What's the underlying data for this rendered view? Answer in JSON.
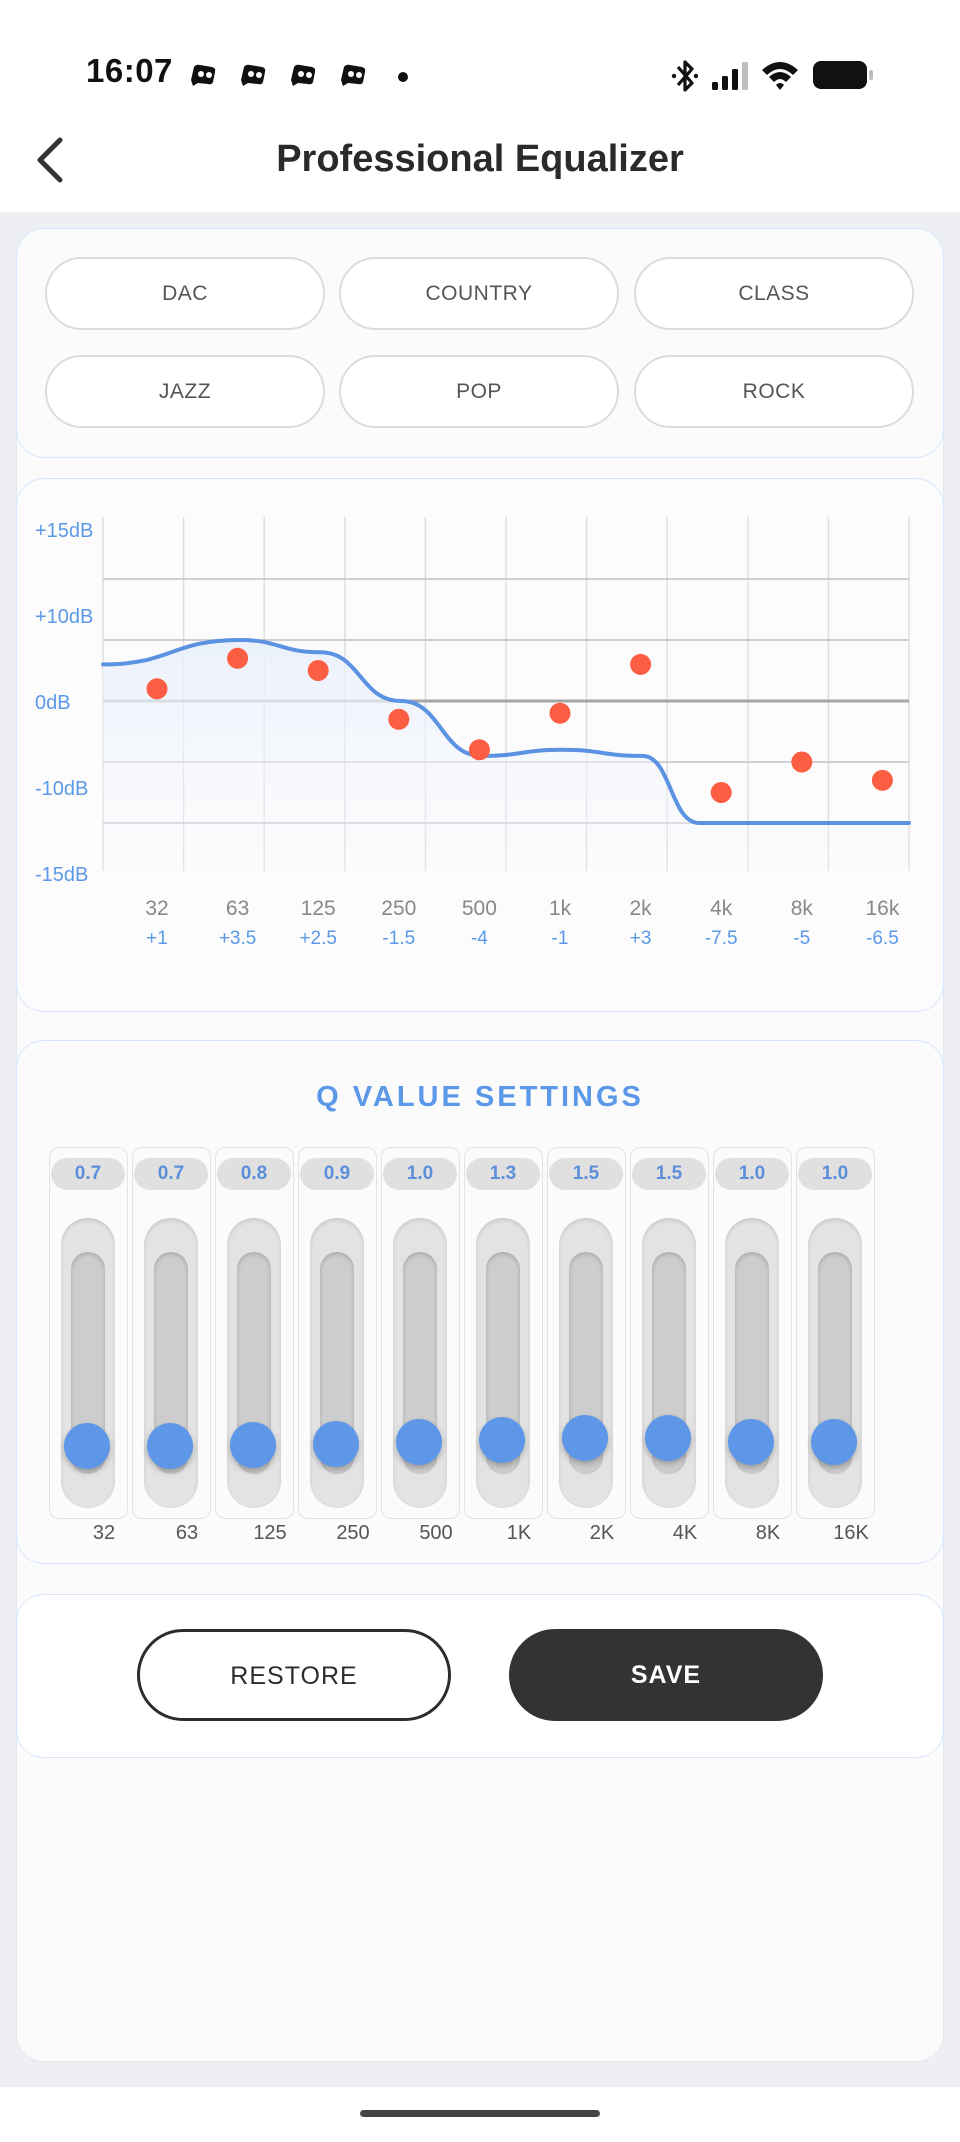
{
  "status_bar": {
    "time": "16:07",
    "notification_icons": [
      "app-notification-icon",
      "app-notification-icon",
      "app-notification-icon",
      "app-notification-icon"
    ],
    "right_icons": [
      "bluetooth-icon",
      "signal-icon",
      "wifi-icon",
      "battery-icon"
    ]
  },
  "header": {
    "title": "Professional Equalizer",
    "back_icon": "chevron-left-icon"
  },
  "presets": [
    "DAC",
    "COUNTRY",
    "CLASS",
    "JAZZ",
    "POP",
    "ROCK"
  ],
  "chart_data": {
    "type": "line",
    "y_tick_labels": [
      "+15dB",
      "+10dB",
      "0dB",
      "-10dB",
      "-15dB"
    ],
    "y_ticks": [
      15,
      10,
      0,
      -10,
      -15
    ],
    "ylim": [
      -15,
      15
    ],
    "grid": true,
    "categories": [
      "32",
      "63",
      "125",
      "250",
      "500",
      "1k",
      "2k",
      "4k",
      "8k",
      "16k"
    ],
    "values": [
      1,
      3.5,
      2.5,
      -1.5,
      -4,
      -1,
      3,
      -7.5,
      -5,
      -6.5
    ],
    "value_labels": [
      "+1",
      "+3.5",
      "+2.5",
      "-1.5",
      "-4",
      "-1",
      "+3",
      "-7.5",
      "-5",
      "-6.5"
    ],
    "curve": [
      {
        "x": 0,
        "y": 3
      },
      {
        "x": 1,
        "y": 5
      },
      {
        "x": 2,
        "y": 4
      },
      {
        "x": 3,
        "y": 0
      },
      {
        "x": 4,
        "y": -4.5
      },
      {
        "x": 5,
        "y": -4
      },
      {
        "x": 6,
        "y": -4.5
      },
      {
        "x": 6.7,
        "y": -10
      },
      {
        "x": 7,
        "y": -10
      },
      {
        "x": 8,
        "y": -10
      },
      {
        "x": 9,
        "y": -10
      }
    ],
    "colors": {
      "curve": "#5b92e2",
      "points": "#fb5e43",
      "labels": "#5b99e8",
      "grid": "#cfcfd4",
      "zero": "#a6a6a6"
    }
  },
  "q_settings": {
    "title": "Q VALUE SETTINGS",
    "bands": [
      {
        "label": "32",
        "q": "0.7",
        "level": 0.18
      },
      {
        "label": "63",
        "q": "0.7",
        "level": 0.18
      },
      {
        "label": "125",
        "q": "0.8",
        "level": 0.19
      },
      {
        "label": "250",
        "q": "0.9",
        "level": 0.2
      },
      {
        "label": "500",
        "q": "1.0",
        "level": 0.22
      },
      {
        "label": "1K",
        "q": "1.3",
        "level": 0.25
      },
      {
        "label": "2K",
        "q": "1.5",
        "level": 0.28
      },
      {
        "label": "4K",
        "q": "1.5",
        "level": 0.28
      },
      {
        "label": "8K",
        "q": "1.0",
        "level": 0.22
      },
      {
        "label": "16K",
        "q": "1.0",
        "level": 0.22
      }
    ],
    "accent": "#5e97e8"
  },
  "actions": {
    "restore_label": "RESTORE",
    "save_label": "SAVE"
  }
}
